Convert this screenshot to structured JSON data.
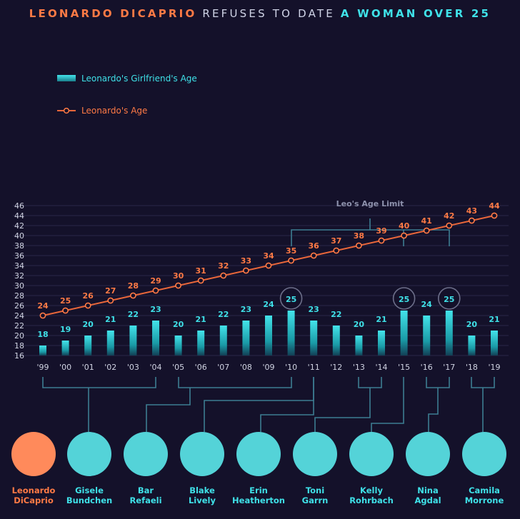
{
  "title": {
    "part1": "LEONARDO DICAPRIO",
    "part2": " REFUSES TO DATE ",
    "part3": "A WOMAN OVER 25"
  },
  "colors": {
    "background": "#14112a",
    "leo_orange": "#ff7a45",
    "gf_cyan": "#3fe1e8",
    "grid": "#2a2748",
    "axis_text": "#d0d3e2",
    "bracket": "#3d7d92"
  },
  "annotation": "Leo's Age Limit",
  "chart_data": {
    "type": "bar",
    "categories": [
      "'99",
      "'00",
      "'01",
      "'02",
      "'03",
      "'04",
      "'05",
      "'06",
      "'07",
      "'08",
      "'09",
      "'10",
      "'11",
      "'12",
      "'13",
      "'14",
      "'15",
      "'16",
      "'17",
      "'18",
      "'19"
    ],
    "ylim": [
      16,
      46
    ],
    "yticks": [
      16,
      18,
      20,
      22,
      24,
      26,
      28,
      30,
      32,
      34,
      36,
      38,
      40,
      42,
      44,
      46
    ],
    "grid": true,
    "legend_position": "top-left",
    "series": [
      {
        "name": "Leonardo's Girlfriend's Age",
        "kind": "bar",
        "values": [
          18,
          19,
          20,
          21,
          22,
          23,
          20,
          21,
          22,
          23,
          24,
          25,
          23,
          22,
          20,
          21,
          25,
          24,
          25,
          20,
          21
        ]
      },
      {
        "name": "Leonardo's Age",
        "kind": "line",
        "values": [
          24,
          25,
          26,
          27,
          28,
          29,
          30,
          31,
          32,
          33,
          34,
          35,
          36,
          37,
          38,
          39,
          40,
          41,
          42,
          43,
          44
        ]
      }
    ],
    "highlighted_age": 25
  },
  "people": [
    {
      "name": "Leonardo\nDiCaprio",
      "kind": "leo"
    },
    {
      "name": "Gisele\nBundchen",
      "kind": "gf",
      "years": [
        0,
        5
      ]
    },
    {
      "name": "Bar\nRefaeli",
      "kind": "gf",
      "years": [
        6,
        10
      ]
    },
    {
      "name": "Blake\nLively",
      "kind": "gf",
      "years": [
        11,
        11
      ]
    },
    {
      "name": "Erin\nHeatherton",
      "kind": "gf",
      "years": [
        11,
        12
      ]
    },
    {
      "name": "Toni\nGarrn",
      "kind": "gf",
      "years": [
        13,
        14
      ]
    },
    {
      "name": "Kelly\nRohrbach",
      "kind": "gf",
      "years": [
        16,
        16
      ]
    },
    {
      "name": "Nina\nAgdal",
      "kind": "gf",
      "years": [
        17,
        18
      ]
    },
    {
      "name": "Camila\nMorrone",
      "kind": "gf",
      "years": [
        19,
        20
      ]
    }
  ]
}
